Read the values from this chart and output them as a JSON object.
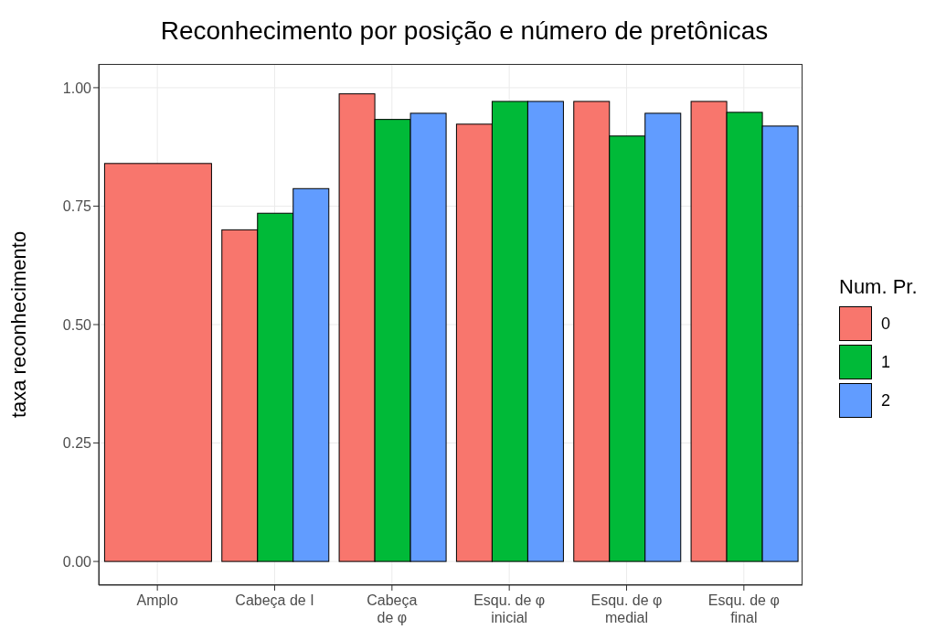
{
  "chart_data": {
    "type": "bar",
    "title": "Reconhecimento por posição e número de pretônicas",
    "ylabel": "taxa reconhecimento",
    "legend_title": "Num. Pr.",
    "categories": [
      "Amplo",
      "Cabeça de I",
      "Cabeça\nde φ",
      "Esqu. de φ\ninicial",
      "Esqu. de φ\nmedial",
      "Esqu. de φ\nfinal"
    ],
    "series": [
      {
        "name": "0",
        "color": "#f8766d",
        "values": [
          0.84,
          0.7,
          0.987,
          0.923,
          0.971,
          0.971
        ]
      },
      {
        "name": "1",
        "color": "#00ba38",
        "values": [
          null,
          0.735,
          0.933,
          0.971,
          0.898,
          0.948
        ]
      },
      {
        "name": "2",
        "color": "#619cff",
        "values": [
          null,
          0.787,
          0.946,
          0.971,
          0.946,
          0.919
        ]
      }
    ],
    "ylim": [
      -0.05,
      1.05
    ],
    "yticks": [
      {
        "value": 0,
        "label": "0.00"
      },
      {
        "value": 0.25,
        "label": "0.25"
      },
      {
        "value": 0.5,
        "label": "0.50"
      },
      {
        "value": 0.75,
        "label": "0.75"
      },
      {
        "value": 1,
        "label": "1.00"
      }
    ],
    "grid": true,
    "legend": "right"
  }
}
